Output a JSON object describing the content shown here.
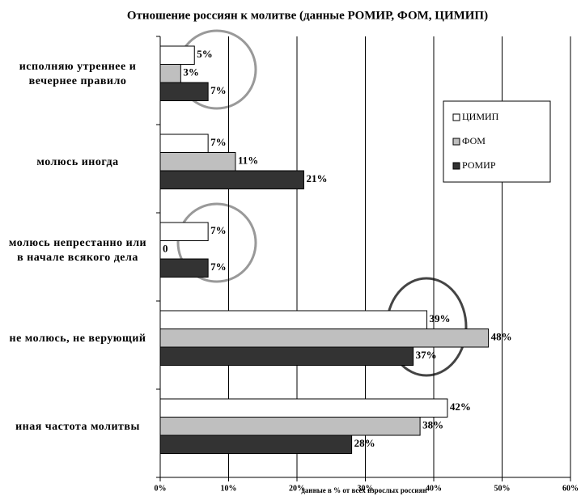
{
  "chart_data": {
    "type": "bar",
    "orientation": "horizontal",
    "title": "Отношение россиян к молитве (данные РОМИР, ФОМ, ЦИМИП)",
    "x_label": "данные в % от всех взрослых россиян",
    "categories": [
      "исполняю утреннее и вечернее правило",
      "молюсь иногда",
      "молюсь непрестанно или в начале всякого дела",
      "не молюсь, не верующий",
      "иная частота молитвы"
    ],
    "series": [
      {
        "name": "ЦИМИП",
        "color": "#ffffff",
        "values": [
          5,
          7,
          7,
          39,
          42
        ],
        "value_labels": [
          "5%",
          "7%",
          "7%",
          "39%",
          "42%"
        ]
      },
      {
        "name": "ФОМ",
        "color": "#bfbfbf",
        "values": [
          3,
          11,
          0,
          48,
          38
        ],
        "value_labels": [
          "3%",
          "11%",
          "0",
          "48%",
          "38%"
        ]
      },
      {
        "name": "РОМИР",
        "color": "#333333",
        "values": [
          7,
          21,
          7,
          37,
          28
        ],
        "value_labels": [
          "7%",
          "21%",
          "7%",
          "37%",
          "28%"
        ]
      }
    ],
    "xlim": [
      0,
      60
    ],
    "xticks": [
      {
        "value": 0,
        "label": "0%"
      },
      {
        "value": 10,
        "label": "10%"
      },
      {
        "value": 20,
        "label": "20%"
      },
      {
        "value": 30,
        "label": "30%"
      },
      {
        "value": 40,
        "label": "40%"
      },
      {
        "value": 50,
        "label": "50%"
      },
      {
        "value": 60,
        "label": "60%"
      }
    ],
    "grid": true,
    "legend": "upper right"
  }
}
